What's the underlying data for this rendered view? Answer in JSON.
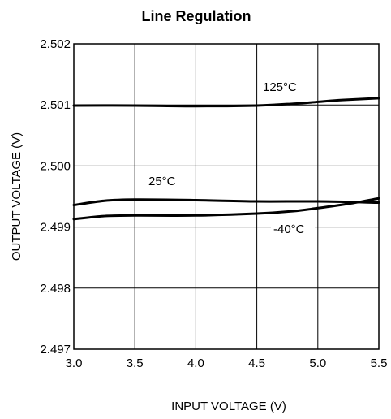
{
  "chart_data": {
    "type": "line",
    "title": "Line Regulation",
    "xlabel": "INPUT VOLTAGE (V)",
    "ylabel": "OUTPUT VOLTAGE (V)",
    "xlim": [
      3.0,
      5.5
    ],
    "ylim": [
      2.497,
      2.502
    ],
    "x_ticks": [
      "3.0",
      "3.5",
      "4.0",
      "4.5",
      "5.0",
      "5.5"
    ],
    "y_ticks": [
      "2.497",
      "2.498",
      "2.499",
      "2.500",
      "2.501",
      "2.502"
    ],
    "grid": true,
    "series": [
      {
        "name": "125°C",
        "x": [
          3.0,
          3.5,
          4.0,
          4.5,
          4.8,
          5.0,
          5.2,
          5.5
        ],
        "y": [
          2.50099,
          2.50099,
          2.50098,
          2.50099,
          2.50102,
          2.50105,
          2.50108,
          2.50111
        ]
      },
      {
        "name": "25°C",
        "x": [
          3.0,
          3.25,
          3.5,
          4.0,
          4.5,
          5.0,
          5.5
        ],
        "y": [
          2.49936,
          2.49943,
          2.49945,
          2.49944,
          2.49942,
          2.49942,
          2.4994
        ]
      },
      {
        "name": "-40°C",
        "x": [
          3.0,
          3.25,
          3.5,
          4.0,
          4.5,
          4.8,
          5.0,
          5.25,
          5.5
        ],
        "y": [
          2.49913,
          2.49918,
          2.49919,
          2.49919,
          2.49922,
          2.49926,
          2.49931,
          2.49938,
          2.49947
        ]
      }
    ]
  }
}
